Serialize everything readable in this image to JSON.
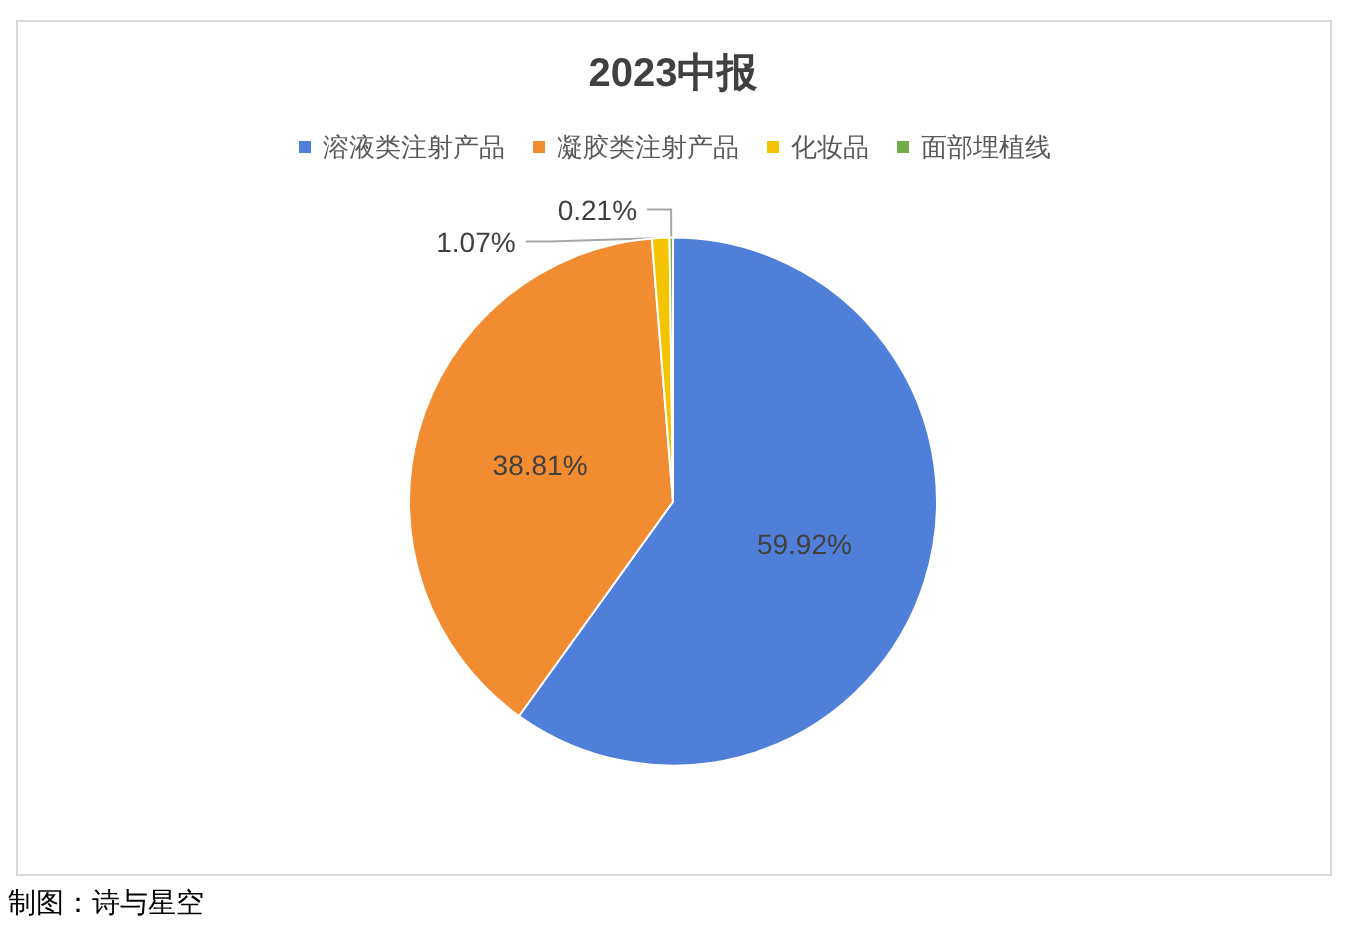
{
  "chart_data": {
    "type": "pie",
    "title": "2023中报",
    "categories": [
      "溶液类注射产品",
      "凝胶类注射产品",
      "化妆品",
      "面部埋植线"
    ],
    "values": [
      59.92,
      38.81,
      1.07,
      0.21
    ],
    "colors": [
      "#4f7fd8",
      "#f28c30",
      "#f5c400",
      "#70ad47"
    ],
    "legend": "top",
    "value_labels": [
      "59.92%",
      "38.81%",
      "1.07%",
      "0.21%"
    ],
    "annotations": [
      "制图：诗与星空"
    ]
  }
}
